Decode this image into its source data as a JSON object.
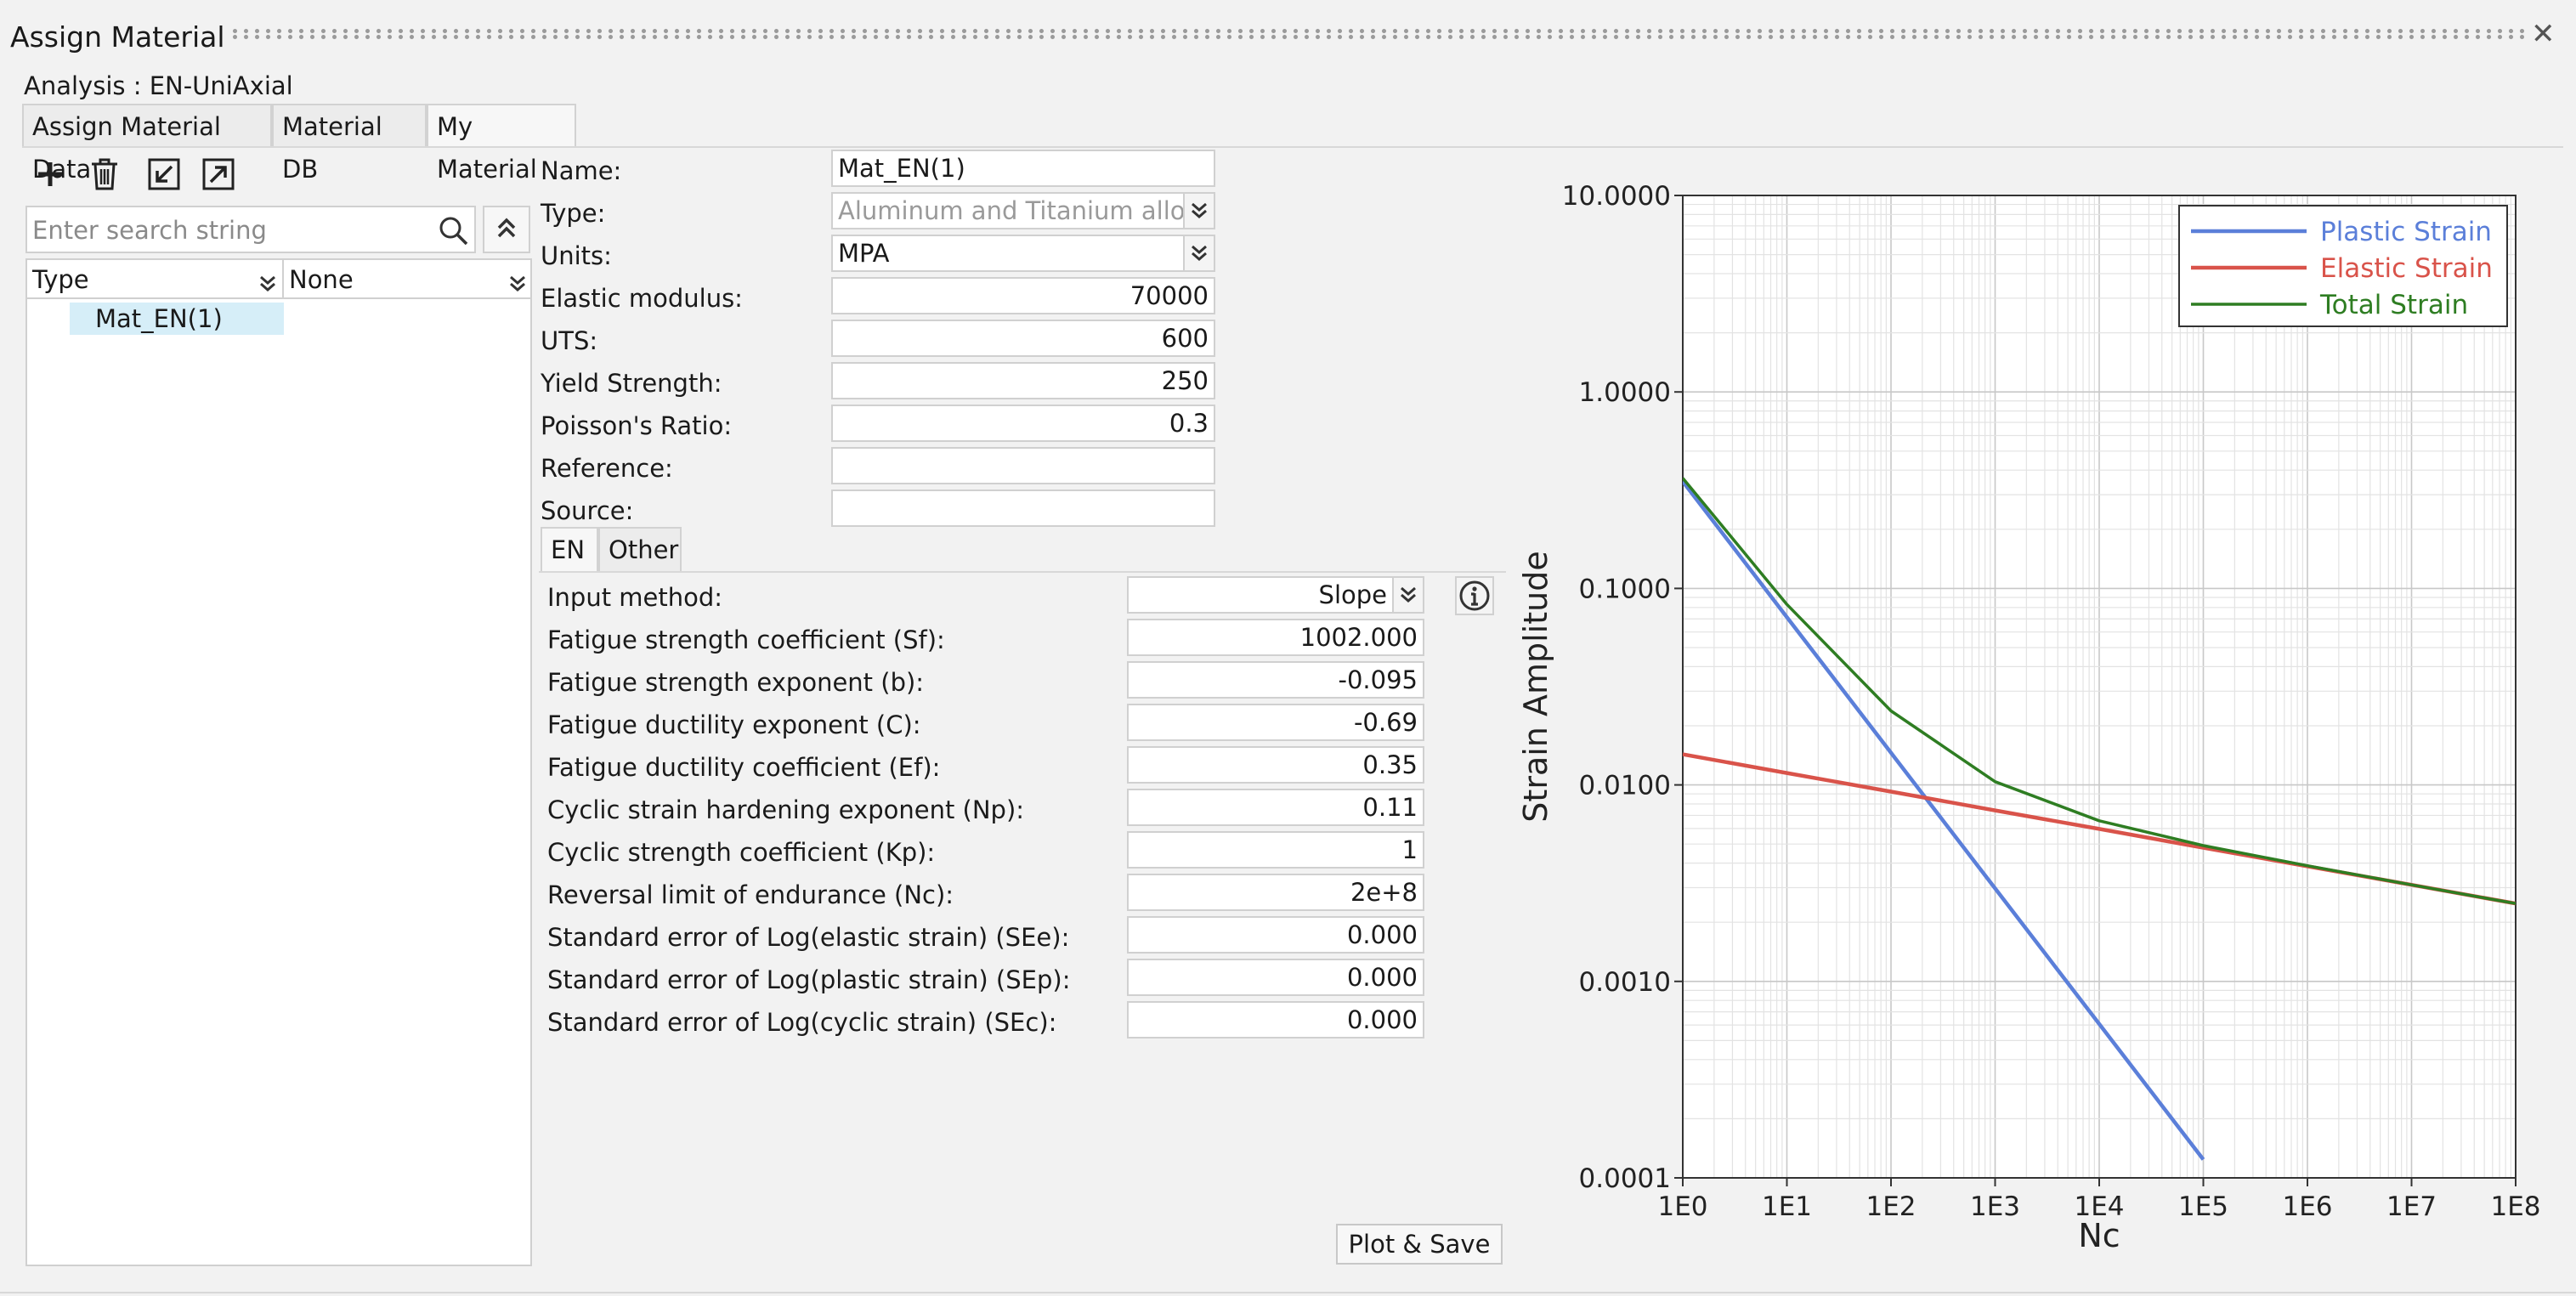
{
  "window": {
    "title": "Assign Material",
    "close_icon": "close-icon"
  },
  "analysis_label": "Analysis : EN-UniAxial",
  "tabs": [
    {
      "label": "Assign Material Data"
    },
    {
      "label": "Material DB"
    },
    {
      "label": "My Material",
      "active": true
    }
  ],
  "toolbar": {
    "icons": [
      "add-icon",
      "trash-icon",
      "import-icon",
      "export-icon"
    ]
  },
  "search": {
    "placeholder": "Enter search string"
  },
  "tree": {
    "columns": [
      "Type",
      "None"
    ],
    "items": [
      {
        "label": "Mat_EN(1)",
        "selected": true
      }
    ]
  },
  "properties": {
    "name": {
      "label": "Name:",
      "value": "Mat_EN(1)"
    },
    "type": {
      "label": "Type:",
      "value": "Aluminum and Titanium alloys"
    },
    "units": {
      "label": "Units:",
      "value": "MPA"
    },
    "elastic_modulus": {
      "label": "Elastic modulus:",
      "value": "70000"
    },
    "uts": {
      "label": "UTS:",
      "value": "600"
    },
    "yield_strength": {
      "label": "Yield Strength:",
      "value": "250"
    },
    "poisson": {
      "label": "Poisson's Ratio:",
      "value": "0.3"
    },
    "reference": {
      "label": "Reference:",
      "value": ""
    },
    "source": {
      "label": "Source:",
      "value": ""
    }
  },
  "subtabs": [
    {
      "label": "EN",
      "active": true
    },
    {
      "label": "Other"
    }
  ],
  "en_params": [
    {
      "label": "Input method:",
      "value": "Slope"
    },
    {
      "label": "Fatigue strength coefficient (Sf):",
      "value": "1002.000"
    },
    {
      "label": "Fatigue strength exponent (b):",
      "value": "-0.095"
    },
    {
      "label": "Fatigue ductility exponent (C):",
      "value": "-0.69"
    },
    {
      "label": "Fatigue ductility coefficient (Ef):",
      "value": "0.35"
    },
    {
      "label": "Cyclic strain hardening exponent (Np):",
      "value": "0.11"
    },
    {
      "label": "Cyclic strength coefficient (Kp):",
      "value": "1"
    },
    {
      "label": "Reversal limit of endurance (Nc):",
      "value": "2e+8"
    },
    {
      "label": "Standard error of Log(elastic strain) (SEe):",
      "value": "0.000"
    },
    {
      "label": "Standard error of Log(plastic strain) (SEp):",
      "value": "0.000"
    },
    {
      "label": "Standard error of Log(cyclic strain) (SEc):",
      "value": "0.000"
    }
  ],
  "plot_button": {
    "label": "Plot & Save"
  },
  "chart_data": {
    "type": "line",
    "xscale": "log",
    "yscale": "log",
    "xlabel": "Nc",
    "ylabel": "Strain Amplitude",
    "xlim": [
      1,
      100000000
    ],
    "ylim": [
      0.0001,
      10
    ],
    "xticks": [
      "1E0",
      "1E1",
      "1E2",
      "1E3",
      "1E4",
      "1E5",
      "1E6",
      "1E7",
      "1E8"
    ],
    "yticks": [
      "0.0001",
      "0.0010",
      "0.0100",
      "0.1000",
      "1.0000",
      "10.0000"
    ],
    "grid": true,
    "legend_position": "top-right",
    "x": [
      1,
      10,
      100,
      1000,
      10000,
      100000,
      1000000,
      10000000,
      100000000
    ],
    "series": [
      {
        "name": "Plastic Strain",
        "color": "#5b7fd9",
        "values": [
          0.35,
          0.0714,
          0.01457,
          0.002973,
          0.000607,
          0.000124,
          null,
          null,
          null
        ]
      },
      {
        "name": "Elastic Strain",
        "color": "#d9534a",
        "values": [
          0.01431,
          0.0115,
          0.00924,
          0.00742,
          0.00597,
          0.00479,
          0.00385,
          0.0031,
          0.00249
        ]
      },
      {
        "name": "Total Strain",
        "color": "#2e7d22",
        "values": [
          0.3643,
          0.0829,
          0.02381,
          0.01039,
          0.00657,
          0.00491,
          0.00388,
          0.0031,
          0.00249
        ]
      }
    ]
  }
}
